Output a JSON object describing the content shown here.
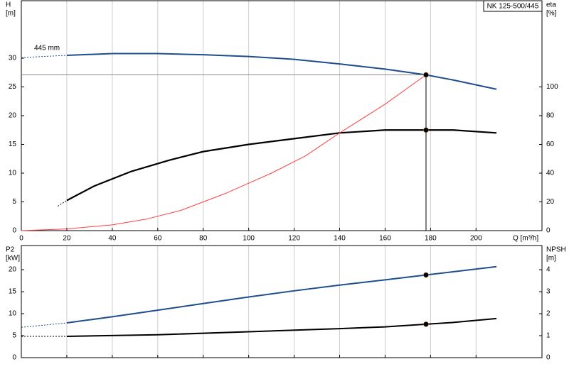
{
  "chart_data": [
    {
      "type": "line",
      "title": "NK 125-500/445",
      "annotation": "445 mm",
      "xlabel": "Q [m³/h]",
      "ylabel": "H",
      "yunit": "[m]",
      "y2label": "eta",
      "y2unit": "[%]",
      "xlim": [
        0,
        229
      ],
      "xticks": [
        0,
        20,
        40,
        60,
        80,
        100,
        120,
        140,
        160,
        180,
        200
      ],
      "ylim": [
        0,
        40
      ],
      "yticks": [
        0,
        5,
        10,
        15,
        20,
        25,
        30
      ],
      "y2lim": [
        0,
        160
      ],
      "y2ticks": [
        0,
        20,
        40,
        60,
        80,
        100
      ],
      "grid": "x",
      "guides": true,
      "series": [
        {
          "name": "H",
          "color": "#1f4e8c",
          "axis": "y",
          "width": 2,
          "x": [
            20,
            40,
            60,
            80,
            100,
            120,
            140,
            160,
            178,
            190,
            209
          ],
          "values": [
            30.5,
            30.8,
            30.8,
            30.6,
            30.3,
            29.8,
            29.0,
            28.1,
            27.1,
            26.2,
            24.6
          ],
          "extension": {
            "x": [
              0,
              20
            ],
            "values": [
              30.1,
              30.5
            ]
          },
          "marker_index": 8,
          "marker_color": "#f5c518"
        },
        {
          "name": "eta",
          "color": "#000000",
          "axis": "y2",
          "width": 2.2,
          "x": [
            20,
            32,
            48,
            65,
            80,
            100,
            120,
            140,
            160,
            178,
            190,
            209
          ],
          "values": [
            21,
            31,
            41,
            49,
            55,
            60,
            64,
            68,
            70,
            70,
            70,
            68
          ],
          "extension": {
            "x": [
              16,
              20
            ],
            "values": [
              17,
              21
            ]
          },
          "marker_index": 9,
          "marker_color": "#ff2020"
        },
        {
          "color": "#ff4040",
          "axis": "y",
          "width": 1,
          "x": [
            0,
            20,
            40,
            55,
            70,
            90,
            110,
            125,
            140,
            160,
            178
          ],
          "values": [
            0,
            0.3,
            1.0,
            2.0,
            3.5,
            6.5,
            10,
            13,
            17,
            22,
            27.1
          ]
        }
      ]
    },
    {
      "type": "line",
      "ylabel": "P2",
      "yunit": "[kW]",
      "y2label": "NPSH",
      "y2unit": "[m]",
      "xlim": [
        0,
        229
      ],
      "xgrid": [
        0,
        20,
        40,
        60,
        80,
        100,
        120,
        140,
        160,
        180,
        200
      ],
      "ylim": [
        0,
        25.5
      ],
      "yticks": [
        0,
        5,
        10,
        15,
        20
      ],
      "y2lim": [
        0,
        5.1
      ],
      "y2ticks": [
        0,
        1,
        2,
        3,
        4
      ],
      "grid": "x",
      "series": [
        {
          "name": "P2",
          "color": "#1f4e8c",
          "axis": "y",
          "width": 2,
          "x": [
            20,
            40,
            60,
            80,
            100,
            120,
            140,
            160,
            178,
            209
          ],
          "values": [
            7.9,
            9.3,
            10.8,
            12.3,
            13.8,
            15.2,
            16.5,
            17.7,
            18.8,
            20.7
          ],
          "extension": {
            "x": [
              0,
              20
            ],
            "values": [
              6.9,
              7.9
            ]
          },
          "marker_index": 8,
          "marker_color": "#ff2020"
        },
        {
          "name": "NPSH",
          "color": "#000000",
          "axis": "y2",
          "width": 2,
          "x": [
            20,
            60,
            100,
            140,
            160,
            178,
            190,
            209
          ],
          "values": [
            0.97,
            1.04,
            1.18,
            1.32,
            1.4,
            1.52,
            1.6,
            1.78
          ],
          "extension": {
            "x": [
              0,
              20
            ],
            "values": [
              0.97,
              0.97
            ]
          },
          "marker_index": 5,
          "marker_color": "#ff2020"
        }
      ]
    }
  ]
}
